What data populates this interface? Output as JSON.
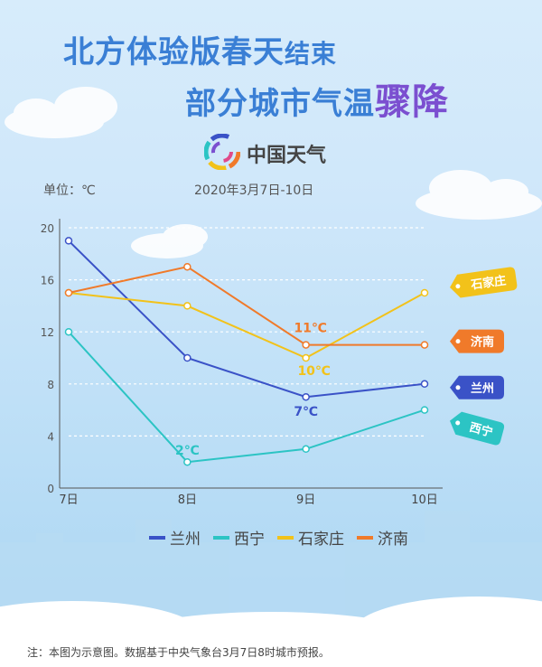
{
  "title": {
    "line1_part_a": "北方体验版春天",
    "line1_part_b": "结束",
    "line2_part_a": "部分城市气温",
    "line2_part_b": "骤降"
  },
  "brand": {
    "name": "中国天气"
  },
  "unit_label": "单位：℃",
  "date_range": "2020年3月7日-10日",
  "footnote": "注：本图为示意图。数据基于中央气象台3月7日8时城市预报。",
  "chart_data": {
    "type": "line",
    "title": "北方体验版春天结束 部分城市气温骤降",
    "categories": [
      "7日",
      "8日",
      "9日",
      "10日"
    ],
    "ylabel": "单位：℃",
    "ylim": [
      0,
      20
    ],
    "yticks": [
      0,
      4,
      8,
      12,
      16,
      20
    ],
    "grid": true,
    "legend_position": "bottom",
    "series": [
      {
        "name": "兰州",
        "color": "#3a52c7",
        "values": [
          19,
          10,
          7,
          8
        ]
      },
      {
        "name": "西宁",
        "color": "#2cc4c4",
        "values": [
          12,
          2,
          3,
          6
        ]
      },
      {
        "name": "石家庄",
        "color": "#f2c21a",
        "values": [
          15,
          14,
          10,
          15
        ]
      },
      {
        "name": "济南",
        "color": "#f07a2a",
        "values": [
          15,
          17,
          11,
          11
        ]
      }
    ],
    "annotations": [
      {
        "series": "西宁",
        "index": 1,
        "text": "2℃"
      },
      {
        "series": "兰州",
        "index": 2,
        "text": "7℃"
      },
      {
        "series": "石家庄",
        "index": 2,
        "text": "10℃"
      },
      {
        "series": "济南",
        "index": 2,
        "text": "11℃"
      }
    ]
  }
}
